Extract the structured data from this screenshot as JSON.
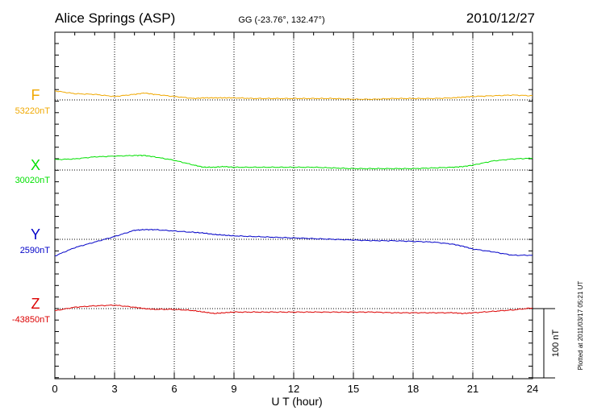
{
  "header": {
    "station": "Alice Springs (ASP)",
    "coords": "GG (-23.76°, 132.47°)",
    "date": "2010/12/27"
  },
  "side_note": "Plotted at 2011/03/17 05:21  UT",
  "chart_data": {
    "type": "line",
    "xlabel": "U T (hour)",
    "xlim": [
      0,
      24
    ],
    "xticks": [
      "0",
      "3",
      "6",
      "9",
      "12",
      "15",
      "18",
      "21",
      "24"
    ],
    "scale_bar": {
      "label": "100 nT",
      "value_nT": 100
    },
    "grid": "dotted",
    "x": [
      0,
      1,
      2,
      3,
      4,
      4.5,
      5,
      6,
      7,
      7.5,
      8,
      8.5,
      9,
      10,
      11,
      12,
      13,
      14,
      15,
      16,
      17,
      18,
      19,
      20,
      20.5,
      21,
      22,
      23,
      24
    ],
    "series": [
      {
        "name": "F",
        "baseline_label": "53220nT",
        "baseline_nT": 53220,
        "color": "#f0a800",
        "values": [
          53233,
          53229,
          53228,
          53225,
          53228,
          53230,
          53228,
          53225,
          53222,
          53223,
          53223,
          53223,
          53223,
          53222,
          53222,
          53222,
          53222,
          53222,
          53221,
          53221,
          53222,
          53222,
          53222,
          53223,
          53224,
          53225,
          53226,
          53227,
          53226
        ]
      },
      {
        "name": "X",
        "baseline_label": "30020nT",
        "baseline_nT": 30020,
        "color": "#00e000",
        "values": [
          30035,
          30036,
          30039,
          30040,
          30041,
          30041,
          30039,
          30034,
          30027,
          30024,
          30024,
          30025,
          30024,
          30024,
          30024,
          30024,
          30024,
          30023,
          30022,
          30022,
          30022,
          30022,
          30023,
          30024,
          30025,
          30027,
          30033,
          30036,
          30037
        ]
      },
      {
        "name": "Y",
        "baseline_label": "2590nT",
        "baseline_nT": 2590,
        "color": "#0000c8",
        "values": [
          2566,
          2578,
          2586,
          2594,
          2603,
          2604,
          2604,
          2602,
          2600,
          2599,
          2597,
          2596,
          2595,
          2594,
          2593,
          2592,
          2591,
          2590,
          2589,
          2588,
          2588,
          2587,
          2586,
          2583,
          2580,
          2576,
          2572,
          2567,
          2567
        ]
      },
      {
        "name": "Z",
        "baseline_label": "-43850nT",
        "baseline_nT": -43850,
        "color": "#dc0000",
        "values": [
          -43853,
          -43848,
          -43846,
          -43845,
          -43848,
          -43850,
          -43851,
          -43851,
          -43853,
          -43855,
          -43857,
          -43856,
          -43855,
          -43855,
          -43855,
          -43855,
          -43855,
          -43855,
          -43855,
          -43855,
          -43856,
          -43856,
          -43856,
          -43856,
          -43857,
          -43856,
          -43854,
          -43852,
          -43849
        ]
      }
    ]
  }
}
